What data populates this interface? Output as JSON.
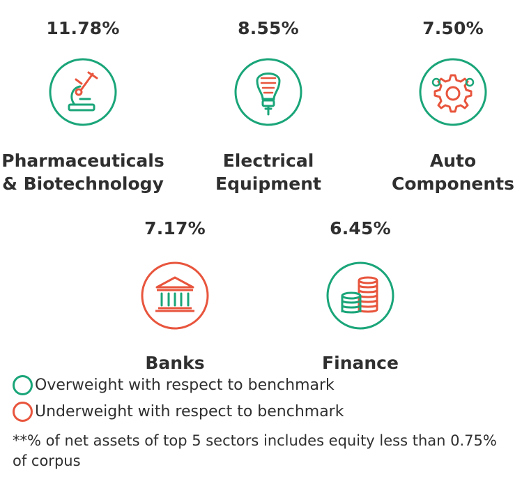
{
  "colors": {
    "overweight": "#1aa579",
    "underweight": "#e8553d"
  },
  "sectors": [
    {
      "pct": "11.78%",
      "line1": "Pharmaceuticals",
      "line2": "& Biotechnology",
      "icon": "microscope-icon",
      "weight": "overweight"
    },
    {
      "pct": "8.55%",
      "line1": "Electrical",
      "line2": "Equipment",
      "icon": "light-bulb-icon",
      "weight": "overweight"
    },
    {
      "pct": "7.50%",
      "line1": "Auto",
      "line2": "Components",
      "icon": "gear-icon",
      "weight": "overweight"
    },
    {
      "pct": "7.17%",
      "line1": "Banks",
      "line2": "",
      "icon": "bank-building-icon",
      "weight": "underweight"
    },
    {
      "pct": "6.45%",
      "line1": "Finance",
      "line2": "",
      "icon": "coin-stack-icon",
      "weight": "overweight"
    }
  ],
  "legend": {
    "overweight": "Overweight with respect to benchmark",
    "underweight": "Underweight with respect to benchmark"
  },
  "note": "**% of net assets of top 5 sectors includes equity less than 0.75% of corpus"
}
